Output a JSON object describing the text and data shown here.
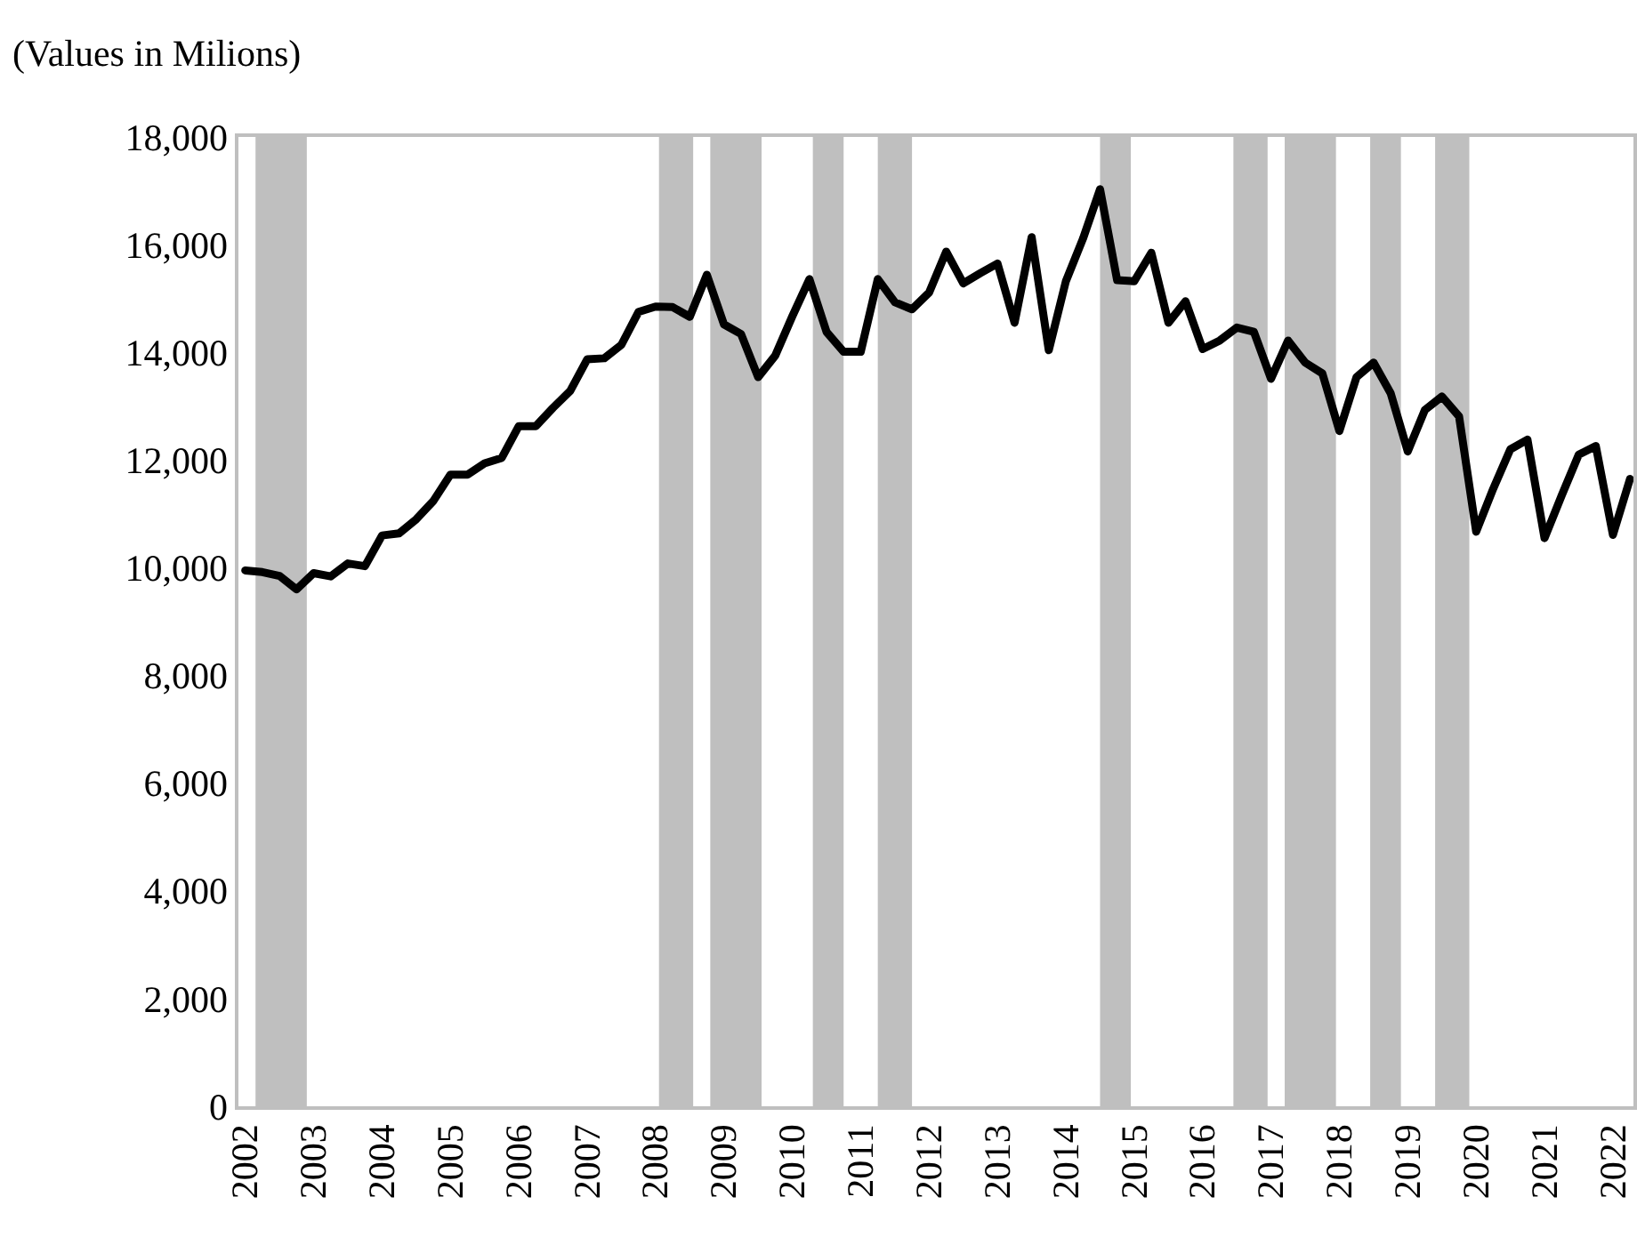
{
  "chart_data": {
    "type": "line",
    "ylabel": "(Values in Milions)",
    "x": [
      2002,
      2002.25,
      2002.5,
      2002.75,
      2003,
      2003.25,
      2003.5,
      2003.75,
      2004,
      2004.25,
      2004.5,
      2004.75,
      2005,
      2005.25,
      2005.5,
      2005.75,
      2006,
      2006.25,
      2006.5,
      2006.75,
      2007,
      2007.25,
      2007.5,
      2007.75,
      2008,
      2008.25,
      2008.5,
      2008.75,
      2009,
      2009.25,
      2009.5,
      2009.75,
      2010,
      2010.25,
      2010.5,
      2010.75,
      2011,
      2011.25,
      2011.5,
      2011.75,
      2012,
      2012.25,
      2012.5,
      2012.75,
      2013,
      2013.25,
      2013.5,
      2013.75,
      2014,
      2014.25,
      2014.5,
      2014.75,
      2015,
      2015.25,
      2015.5,
      2015.75,
      2016,
      2016.25,
      2016.5,
      2016.75,
      2017,
      2017.25,
      2017.5,
      2017.75,
      2018,
      2018.25,
      2018.5,
      2018.75,
      2019,
      2019.25,
      2019.5,
      2019.75,
      2020,
      2020.25,
      2020.5,
      2020.75,
      2021,
      2021.25,
      2021.5,
      2021.75,
      2022,
      2022.25
    ],
    "series": [
      {
        "color": "#000000",
        "values": [
          9950,
          9920,
          9850,
          9600,
          9900,
          9840,
          10080,
          10030,
          10600,
          10640,
          10900,
          11240,
          11730,
          11730,
          11940,
          12040,
          12630,
          12630,
          12970,
          13280,
          13870,
          13890,
          14140,
          14750,
          14850,
          14840,
          14660,
          15440,
          14520,
          14340,
          13540,
          13940,
          14670,
          15360,
          14380,
          14010,
          14010,
          15360,
          14930,
          14800,
          15110,
          15870,
          15280,
          15470,
          15650,
          14550,
          16140,
          14040,
          15320,
          16110,
          17030,
          15340,
          15320,
          15850,
          14550,
          14950,
          14060,
          14220,
          14460,
          14380,
          13510,
          14220,
          13810,
          13610,
          12540,
          13540,
          13810,
          13240,
          12160,
          12930,
          13180,
          12810,
          10670,
          11470,
          12200,
          12380,
          10550,
          11340,
          12100,
          12260,
          10610,
          11650
        ]
      }
    ],
    "xlim": [
      2001.9,
      2022.3
    ],
    "xticks": [
      2002,
      2003,
      2004,
      2005,
      2006,
      2007,
      2008,
      2009,
      2010,
      2011,
      2012,
      2013,
      2014,
      2015,
      2016,
      2017,
      2018,
      2019,
      2020,
      2021,
      2022
    ],
    "ylim": [
      0,
      18000
    ],
    "yticks": [
      0,
      {
        "value": 2000,
        "label": "2,000"
      },
      {
        "value": 4000,
        "label": "4,000"
      },
      {
        "value": 6000,
        "label": "6,000"
      },
      {
        "value": 8000,
        "label": "8,000"
      },
      {
        "value": 10000,
        "label": "10,000"
      },
      {
        "value": 12000,
        "label": "12,000"
      },
      {
        "value": 14000,
        "label": "14,000"
      },
      {
        "value": 16000,
        "label": "16,000"
      },
      {
        "value": 18000,
        "label": "18,000"
      }
    ],
    "bands": [
      {
        "axis": "x",
        "from": 2002.15,
        "to": 2002.9,
        "color": "#bfbfbf"
      },
      {
        "axis": "x",
        "from": 2008.05,
        "to": 2008.55,
        "color": "#bfbfbf"
      },
      {
        "axis": "x",
        "from": 2008.8,
        "to": 2009.55,
        "color": "#bfbfbf"
      },
      {
        "axis": "x",
        "from": 2010.3,
        "to": 2010.75,
        "color": "#bfbfbf"
      },
      {
        "axis": "x",
        "from": 2011.25,
        "to": 2011.75,
        "color": "#bfbfbf"
      },
      {
        "axis": "x",
        "from": 2014.5,
        "to": 2014.95,
        "color": "#bfbfbf"
      },
      {
        "axis": "x",
        "from": 2016.45,
        "to": 2016.95,
        "color": "#bfbfbf"
      },
      {
        "axis": "x",
        "from": 2017.2,
        "to": 2017.95,
        "color": "#bfbfbf"
      },
      {
        "axis": "x",
        "from": 2018.45,
        "to": 2018.9,
        "color": "#bfbfbf"
      },
      {
        "axis": "x",
        "from": 2019.4,
        "to": 2019.9,
        "color": "#bfbfbf"
      }
    ],
    "grid": false,
    "line_style": "solid",
    "marker": "none"
  }
}
